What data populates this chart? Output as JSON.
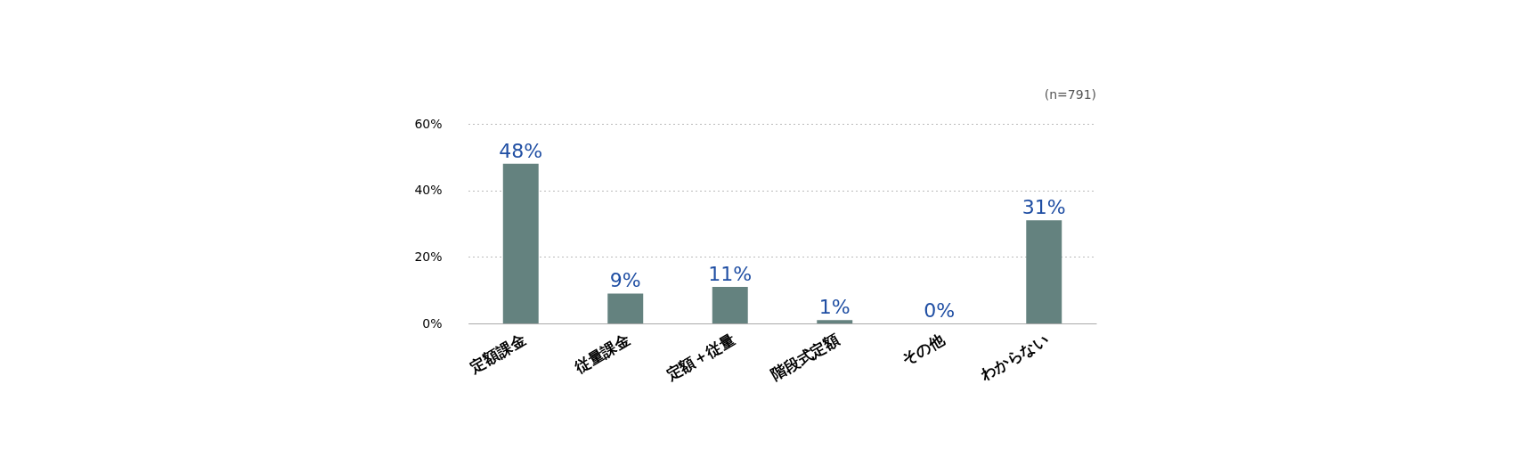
{
  "chart_data": {
    "type": "bar",
    "categories": [
      "定額課金",
      "従量課金",
      "定額＋従量",
      "階段式定額",
      "その他",
      "わからない"
    ],
    "values": [
      48,
      9,
      11,
      1,
      0,
      31
    ],
    "value_labels": [
      "48%",
      "9%",
      "11%",
      "1%",
      "0%",
      "31%"
    ],
    "color": "#64827f",
    "ylim": [
      0,
      60
    ],
    "yticks": [
      {
        "value": 0,
        "label": "0%"
      },
      {
        "value": 20,
        "label": "20%"
      },
      {
        "value": 40,
        "label": "40%"
      },
      {
        "value": 60,
        "label": "60%"
      }
    ],
    "grid": "y",
    "annotations": [
      "(n=791)"
    ]
  }
}
